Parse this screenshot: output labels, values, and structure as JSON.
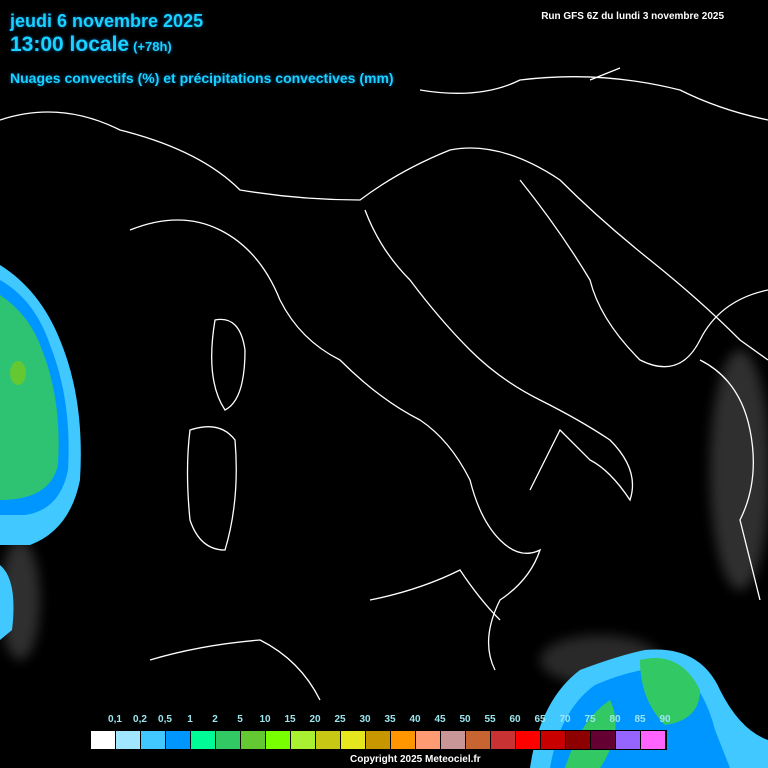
{
  "header": {
    "date": "jeudi 6 novembre 2025",
    "time": "13:00 locale",
    "lead": "(+78h)",
    "parameter": "Nuages convectifs (%) et précipitations convectives (mm)",
    "run": "Run GFS 6Z du lundi 3 novembre 2025"
  },
  "legend": {
    "labels": [
      "0,1",
      "0,2",
      "0,5",
      "1",
      "2",
      "5",
      "10",
      "15",
      "20",
      "25",
      "30",
      "35",
      "40",
      "45",
      "50",
      "55",
      "60",
      "65",
      "70",
      "75",
      "80",
      "85",
      "90"
    ],
    "colors": [
      "#FFFFFF",
      "#A0E6FF",
      "#40C8FF",
      "#0096FF",
      "#00FA96",
      "#32C864",
      "#64C832",
      "#78FF00",
      "#AAF032",
      "#C8C814",
      "#E6E61E",
      "#C89600",
      "#FF9600",
      "#FF9B73",
      "#C89696",
      "#C86432",
      "#C83232",
      "#FF0000",
      "#C80000",
      "#8C0000",
      "#640032",
      "#9664FF",
      "#FF64FF"
    ]
  },
  "copyright": "Copyright 2025 Meteociel.fr"
}
